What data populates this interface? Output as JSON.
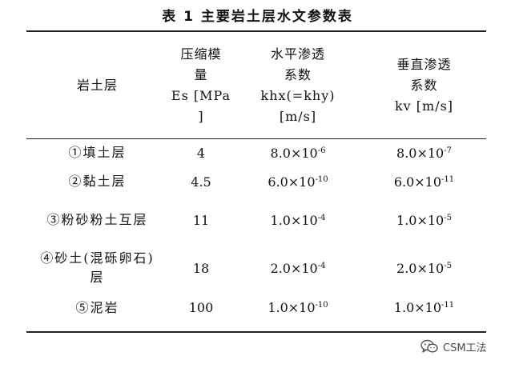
{
  "caption": "表 1 主要岩土层水文参数表",
  "headers": {
    "layer": "岩土层",
    "modulus_lines": [
      "压缩模",
      "量",
      "Es [MPa",
      "]"
    ],
    "horizontal_lines": [
      "水平渗透",
      "系数",
      "khx(=khy)",
      "[m/s]"
    ],
    "vertical_lines": [
      "垂直渗透",
      "系数",
      "kv [m/s]"
    ]
  },
  "rows": [
    {
      "name": "①填土层",
      "modulus": "4",
      "kh": {
        "mantissa": "8.0×10",
        "exponent": "-6"
      },
      "kv": {
        "mantissa": "8.0×10",
        "exponent": "-7"
      }
    },
    {
      "name": "②黏土层",
      "modulus": "4.5",
      "kh": {
        "mantissa": "6.0×10",
        "exponent": "-10"
      },
      "kv": {
        "mantissa": "6.0×10",
        "exponent": "-11"
      }
    },
    {
      "name": "③粉砂粉土互层",
      "modulus": "11",
      "kh": {
        "mantissa": "1.0×10",
        "exponent": "-4"
      },
      "kv": {
        "mantissa": "1.0×10",
        "exponent": "-5"
      }
    },
    {
      "name": "④砂土(混砾卵石)层",
      "modulus": "18",
      "kh": {
        "mantissa": "2.0×10",
        "exponent": "-4"
      },
      "kv": {
        "mantissa": "2.0×10",
        "exponent": "-5"
      }
    },
    {
      "name": "⑤泥岩",
      "modulus": "100",
      "kh": {
        "mantissa": "1.0×10",
        "exponent": "-10"
      },
      "kv": {
        "mantissa": "1.0×10",
        "exponent": "-11"
      }
    }
  ],
  "watermark": {
    "text": "CSM工法",
    "icon": "wechat-icon"
  }
}
